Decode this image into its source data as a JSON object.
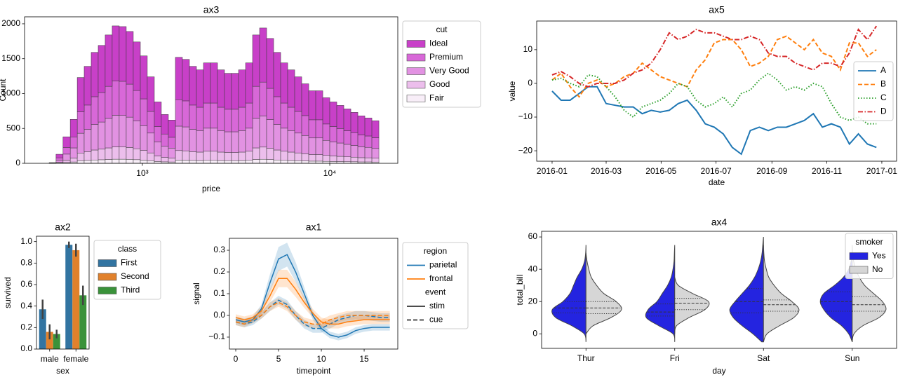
{
  "chart_data": [
    {
      "type": "histogram",
      "title": "ax3",
      "xlabel": "price",
      "ylabel": "Count",
      "xscale": "log",
      "xlim": [
        235,
        23070
      ],
      "xticks": [
        {
          "value": 1000,
          "label": "10³"
        },
        {
          "value": 10000,
          "label": "10⁴"
        }
      ],
      "ylim": [
        0,
        2100
      ],
      "yticks": [
        0,
        500,
        1000,
        1500,
        2000
      ],
      "legend": "outside right",
      "legend_title": "cut",
      "bins": [
        318,
        346,
        377,
        412,
        449,
        489,
        533,
        581,
        633,
        690,
        752,
        820,
        894,
        975,
        1062,
        1158,
        1262,
        1376,
        1500,
        1635,
        1782,
        1943,
        2118,
        2309,
        2517,
        2743,
        2990,
        3260,
        3553,
        3873,
        4222,
        4603,
        5017,
        5469,
        5962,
        6499,
        7084,
        7722,
        8418,
        9176,
        10000,
        10901,
        11883,
        12954,
        14120,
        15392,
        16779,
        18290
      ],
      "series": [
        {
          "name": "Ideal",
          "color": "#c840c8",
          "values": [
            4,
            51,
            153,
            251,
            491,
            555,
            635,
            675,
            736,
            788,
            784,
            755,
            696,
            616,
            496,
            353,
            280,
            247,
            607,
            595,
            555,
            536,
            576,
            576,
            536,
            515,
            515,
            536,
            576,
            736,
            776,
            715,
            635,
            576,
            536,
            496,
            456,
            416,
            416,
            376,
            353,
            331,
            313,
            291,
            273,
            258,
            244
          ]
        },
        {
          "name": "Premium",
          "color": "#d868d8",
          "values": [
            3,
            33,
            95,
            158,
            308,
            348,
            398,
            423,
            460,
            493,
            490,
            473,
            435,
            385,
            310,
            220,
            175,
            155,
            380,
            373,
            348,
            335,
            360,
            360,
            335,
            323,
            323,
            335,
            360,
            460,
            485,
            448,
            398,
            360,
            335,
            310,
            285,
            260,
            260,
            235,
            220,
            208,
            195,
            183,
            170,
            163,
            153
          ]
        },
        {
          "name": "Very Good",
          "color": "#e292e2",
          "values": [
            2,
            30,
            87,
            145,
            283,
            320,
            366,
            389,
            423,
            453,
            451,
            435,
            400,
            354,
            285,
            202,
            161,
            143,
            350,
            343,
            320,
            308,
            331,
            331,
            308,
            297,
            297,
            308,
            331,
            423,
            446,
            412,
            366,
            331,
            308,
            285,
            262,
            239,
            239,
            216,
            202,
            191,
            179,
            168,
            156,
            150,
            140
          ]
        },
        {
          "name": "Good",
          "color": "#ecbeec",
          "values": [
            1,
            12,
            34,
            57,
            111,
            125,
            143,
            152,
            166,
            177,
            176,
            170,
            157,
            139,
            112,
            79,
            63,
            56,
            137,
            134,
            125,
            121,
            130,
            130,
            121,
            116,
            116,
            121,
            130,
            166,
            175,
            161,
            143,
            130,
            121,
            112,
            103,
            94,
            94,
            85,
            79,
            75,
            70,
            66,
            61,
            59,
            55
          ]
        },
        {
          "name": "Fair",
          "color": "#f8eef8",
          "values": [
            0,
            4,
            11,
            19,
            37,
            42,
            48,
            51,
            55,
            59,
            59,
            57,
            52,
            46,
            37,
            26,
            21,
            19,
            46,
            45,
            42,
            40,
            43,
            43,
            40,
            39,
            39,
            40,
            43,
            55,
            58,
            54,
            48,
            43,
            40,
            37,
            34,
            31,
            31,
            28,
            26,
            25,
            23,
            22,
            20,
            20,
            18
          ]
        }
      ]
    },
    {
      "type": "line",
      "title": "ax5",
      "xlabel": "date",
      "ylabel": "value",
      "xlim": [
        -17.1,
        382.4
      ],
      "xticks": [
        {
          "value": 0,
          "label": "2016-01"
        },
        {
          "value": 60,
          "label": "2016-03"
        },
        {
          "value": 121,
          "label": "2016-05"
        },
        {
          "value": 182,
          "label": "2016-07"
        },
        {
          "value": 244,
          "label": "2016-09"
        },
        {
          "value": 305,
          "label": "2016-11"
        },
        {
          "value": 366,
          "label": "2017-01"
        }
      ],
      "ylim": [
        -23.1,
        18.5
      ],
      "yticks": [
        {
          "value": -20,
          "label": "−20"
        },
        {
          "value": -10,
          "label": "−10"
        },
        0,
        10
      ],
      "legend": "right",
      "x": [
        0,
        10,
        20,
        30,
        40,
        50,
        60,
        70,
        80,
        90,
        100,
        110,
        120,
        130,
        140,
        150,
        160,
        170,
        180,
        190,
        200,
        210,
        220,
        230,
        240,
        250,
        260,
        270,
        280,
        290,
        300,
        310,
        320,
        330,
        340,
        350,
        360
      ],
      "series": [
        {
          "name": "A",
          "color": "#1f77b4",
          "dash": "solid",
          "values": [
            -2.3,
            -5,
            -5,
            -3,
            -1,
            -1,
            -6,
            -6.5,
            -7,
            -7,
            -9,
            -8,
            -8.5,
            -8,
            -6,
            -5,
            -8,
            -12,
            -13,
            -15,
            -19,
            -21,
            -14,
            -13,
            -14,
            -13,
            -13,
            -12,
            -11,
            -9,
            -13,
            -12,
            -13,
            -18,
            -15,
            -18,
            -19
          ]
        },
        {
          "name": "B",
          "color": "#ff7f0e",
          "dash": "dashed",
          "values": [
            1,
            3,
            -1,
            -4,
            0,
            1,
            -1,
            0,
            2,
            3,
            6,
            4,
            2,
            1,
            0,
            -1,
            4,
            7,
            12,
            13,
            13,
            10,
            5,
            6,
            8,
            13,
            14,
            12,
            10,
            13,
            9,
            8,
            4,
            12,
            12,
            8,
            10
          ]
        },
        {
          "name": "C",
          "color": "#2ca02c",
          "dash": "dotted",
          "values": [
            1,
            1.5,
            0,
            -1,
            2.5,
            2,
            -1,
            -4,
            -8,
            -10,
            -7,
            -6,
            -5,
            -3,
            0,
            -1,
            -5,
            -7,
            -6,
            -4,
            -7,
            -3,
            -2,
            1,
            3,
            1,
            -2,
            -1,
            -2,
            0,
            -1,
            -6,
            -10,
            -11,
            -10,
            -12,
            -12
          ]
        },
        {
          "name": "D",
          "color": "#d62728",
          "dash": "dashdot",
          "values": [
            2.5,
            3.5,
            2,
            0,
            -1,
            0,
            0,
            0,
            1,
            3,
            4,
            6,
            10,
            15,
            13,
            14,
            16,
            15,
            15,
            14,
            13,
            13,
            14,
            13,
            9,
            8,
            8,
            6,
            5,
            4,
            6,
            6,
            5,
            9,
            16,
            13,
            17
          ]
        }
      ]
    },
    {
      "type": "bar",
      "title": "ax2",
      "xlabel": "sex",
      "ylabel": "survived",
      "categories": [
        "male",
        "female"
      ],
      "ylim": [
        0,
        1.05
      ],
      "yticks": [
        {
          "value": 0,
          "label": "0.0"
        },
        0.2,
        0.4,
        0.6,
        0.8,
        {
          "value": 1,
          "label": "1.0"
        }
      ],
      "legend": "outside right",
      "legend_title": "class",
      "series": [
        {
          "name": "First",
          "color": "#3274a1",
          "values": [
            0.37,
            0.97
          ],
          "errors": [
            0.09,
            0.03
          ]
        },
        {
          "name": "Second",
          "color": "#e1812c",
          "values": [
            0.16,
            0.92
          ],
          "errors": [
            0.07,
            0.06
          ]
        },
        {
          "name": "Third",
          "color": "#3a923a",
          "values": [
            0.14,
            0.5
          ],
          "errors": [
            0.04,
            0.09
          ]
        }
      ]
    },
    {
      "type": "errorband",
      "title": "ax1",
      "xlabel": "timepoint",
      "ylabel": "signal",
      "xlim": [
        -0.74,
        18.93
      ],
      "xticks": [
        0,
        5,
        10,
        15
      ],
      "ylim": [
        -0.155,
        0.355
      ],
      "yticks": [
        {
          "value": -0.1,
          "label": "−0.1"
        },
        {
          "value": 0,
          "label": "0.0"
        },
        0.1,
        0.2,
        0.3
      ],
      "legend": "outside right",
      "hue_title": "region",
      "hue_levels": [
        {
          "name": "parietal",
          "color": "#1f77b4"
        },
        {
          "name": "frontal",
          "color": "#ff7f0e"
        }
      ],
      "style_title": "event",
      "style_levels": [
        {
          "name": "stim",
          "dash": "solid"
        },
        {
          "name": "cue",
          "dash": "dashed"
        }
      ],
      "x": [
        0,
        1,
        2,
        3,
        4,
        5,
        6,
        7,
        8,
        9,
        10,
        11,
        12,
        13,
        14,
        15,
        16,
        17,
        18
      ],
      "values": [
        [
          [
            -0.02,
            -0.03,
            -0.02,
            0.03,
            0.15,
            0.26,
            0.28,
            0.2,
            0.1,
            0,
            -0.06,
            -0.09,
            -0.1,
            -0.09,
            -0.07,
            -0.06,
            -0.055,
            -0.055,
            -0.055
          ],
          [
            -0.03,
            -0.04,
            -0.03,
            0,
            0.04,
            0.07,
            0.05,
            0,
            -0.04,
            -0.06,
            -0.06,
            -0.04,
            -0.02,
            -0.01,
            0,
            0,
            -0.005,
            -0.01,
            -0.01
          ]
        ],
        [
          [
            -0.01,
            -0.02,
            -0.01,
            0.02,
            0.09,
            0.17,
            0.17,
            0.12,
            0.06,
            0.01,
            -0.03,
            -0.04,
            -0.04,
            -0.03,
            -0.025,
            -0.02,
            -0.02,
            -0.02,
            -0.02
          ],
          [
            -0.03,
            -0.04,
            -0.02,
            0,
            0.04,
            0.06,
            0.04,
            0,
            -0.03,
            -0.04,
            -0.04,
            -0.02,
            -0.01,
            0,
            0,
            0,
            0,
            0,
            0
          ]
        ]
      ],
      "errors": [
        [
          [
            0.015,
            0.015,
            0.015,
            0.02,
            0.04,
            0.055,
            0.055,
            0.045,
            0.03,
            0.02,
            0.015,
            0.015,
            0.015,
            0.015,
            0.015,
            0.015,
            0.015,
            0.015,
            0.015
          ],
          [
            0.015,
            0.015,
            0.015,
            0.015,
            0.02,
            0.02,
            0.02,
            0.02,
            0.02,
            0.02,
            0.02,
            0.02,
            0.02,
            0.02,
            0.02,
            0.02,
            0.02,
            0.02,
            0.02
          ]
        ],
        [
          [
            0.015,
            0.015,
            0.015,
            0.02,
            0.03,
            0.04,
            0.04,
            0.035,
            0.025,
            0.02,
            0.02,
            0.02,
            0.02,
            0.02,
            0.02,
            0.02,
            0.02,
            0.02,
            0.02
          ],
          [
            0.015,
            0.015,
            0.015,
            0.015,
            0.02,
            0.02,
            0.02,
            0.02,
            0.02,
            0.02,
            0.02,
            0.02,
            0.02,
            0.02,
            0.02,
            0.02,
            0.02,
            0.02,
            0.02
          ]
        ]
      ]
    },
    {
      "type": "violin",
      "title": "ax4",
      "xlabel": "day",
      "ylabel": "total_bill",
      "categories": [
        "Thur",
        "Fri",
        "Sat",
        "Sun"
      ],
      "ylim": [
        -9,
        63.5
      ],
      "yticks": [
        0,
        20,
        40,
        60
      ],
      "legend": "upper right",
      "legend_title": "smoker",
      "hue_levels": [
        {
          "name": "Yes",
          "color": "#2424e0"
        },
        {
          "name": "No",
          "color": "#d6d6d6"
        }
      ],
      "density_y": [
        -5,
        0,
        5,
        10,
        15,
        20,
        25,
        30,
        35,
        40,
        45,
        50,
        55,
        60
      ],
      "density": [
        [
          [
            0,
            0.05,
            0.4,
            0.85,
            0.95,
            0.65,
            0.45,
            0.35,
            0.25,
            0.12,
            0.04,
            0.01,
            0,
            0
          ],
          [
            0,
            0,
            0.2,
            0.7,
            1,
            0.85,
            0.5,
            0.3,
            0.15,
            0.08,
            0.03,
            0,
            0,
            0
          ]
        ],
        [
          [
            0,
            0.05,
            0.45,
            0.8,
            0.75,
            0.5,
            0.35,
            0.2,
            0.1,
            0.05,
            0.02,
            0.01,
            0,
            0
          ],
          [
            0,
            0,
            0.05,
            0.4,
            0.85,
            0.95,
            0.5,
            0.1,
            0,
            0,
            0,
            0,
            0,
            0
          ]
        ],
        [
          [
            0.05,
            0.3,
            0.6,
            0.85,
            0.95,
            0.8,
            0.6,
            0.4,
            0.25,
            0.15,
            0.08,
            0.04,
            0.02,
            0
          ],
          [
            0,
            0.1,
            0.45,
            0.85,
            1,
            0.8,
            0.5,
            0.3,
            0.15,
            0.08,
            0.03,
            0.01,
            0,
            0
          ]
        ],
        [
          [
            0,
            0.1,
            0.3,
            0.6,
            0.8,
            0.9,
            0.8,
            0.5,
            0.25,
            0.1,
            0.03,
            0,
            0,
            0
          ],
          [
            0,
            0.05,
            0.3,
            0.75,
            0.95,
            0.85,
            0.6,
            0.35,
            0.2,
            0.1,
            0.04,
            0.01,
            0,
            0
          ]
        ]
      ],
      "quartiles": [
        [
          [
            13,
            16,
            20
          ],
          [
            12.5,
            16,
            20
          ]
        ],
        [
          [
            11,
            13.5,
            18.5
          ],
          [
            15,
            19,
            22
          ]
        ],
        [
          [
            13,
            20,
            28
          ],
          [
            14,
            18,
            21
          ]
        ],
        [
          [
            14,
            20,
            26
          ],
          [
            14,
            18,
            23
          ]
        ]
      ]
    }
  ]
}
